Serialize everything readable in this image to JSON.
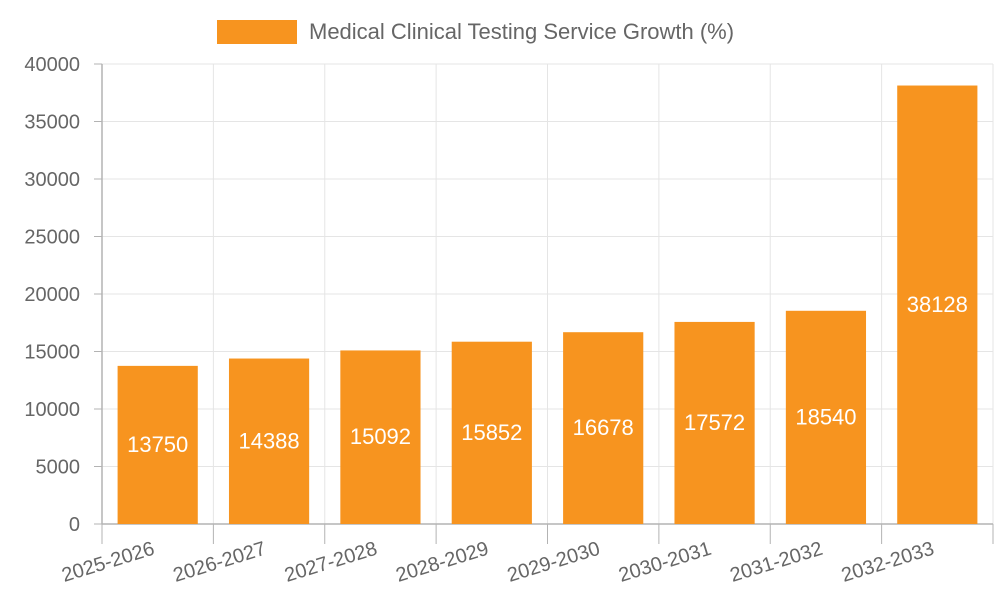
{
  "chart_data": {
    "type": "bar",
    "title": "",
    "xlabel": "",
    "ylabel": "",
    "categories": [
      "2025-2026",
      "2026-2027",
      "2027-2028",
      "2028-2029",
      "2029-2030",
      "2030-2031",
      "2031-2032",
      "2032-2033"
    ],
    "series": [
      {
        "name": "Medical Clinical Testing Service Growth (%)",
        "values": [
          13750,
          14388,
          15092,
          15852,
          16678,
          17572,
          18540,
          38128
        ],
        "color": "#f7941f"
      }
    ],
    "ylim": [
      0,
      40000
    ],
    "yticks": [
      0,
      5000,
      10000,
      15000,
      20000,
      25000,
      30000,
      35000,
      40000
    ],
    "grid": true,
    "legend_position": "top",
    "data_labels": true,
    "colors": {
      "bar": "#f7941f",
      "label_text": "#ffffff",
      "axis_text": "#666666",
      "grid": "#e5e5e5",
      "axis": "#b3b3b3"
    }
  }
}
